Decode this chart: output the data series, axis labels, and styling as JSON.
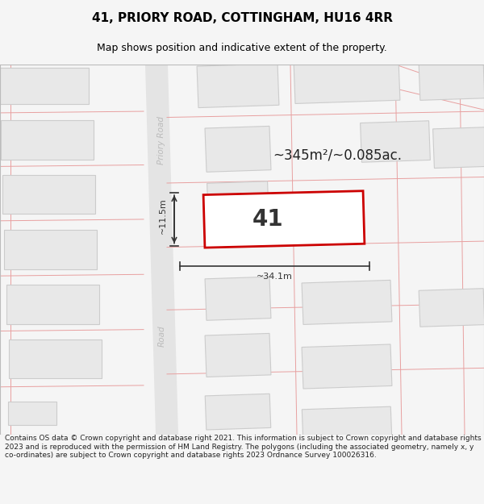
{
  "title": "41, PRIORY ROAD, COTTINGHAM, HU16 4RR",
  "subtitle": "Map shows position and indicative extent of the property.",
  "footer": "Contains OS data © Crown copyright and database right 2021. This information is subject to Crown copyright and database rights 2023 and is reproduced with the permission of HM Land Registry. The polygons (including the associated geometry, namely x, y co-ordinates) are subject to Crown copyright and database rights 2023 Ordnance Survey 100026316.",
  "area_label": "~345m²/~0.085ac.",
  "width_label": "~34.1m",
  "height_label": "~11.5m",
  "property_number": "41",
  "bg_color": "#f5f5f5",
  "map_bg": "#ffffff",
  "building_fill": "#e8e8e8",
  "building_edge": "#cccccc",
  "property_fill": "#ffffff",
  "property_edge": "#cc0000",
  "cadastral_color": "#e8a0a0",
  "road_fill": "#e0e0e0",
  "road_text_color": "#bbbbbb",
  "title_fontsize": 11,
  "subtitle_fontsize": 9,
  "footer_fontsize": 6.5,
  "left_buildings": [
    [
      55,
      462,
      110,
      48,
      0
    ],
    [
      58,
      390,
      115,
      52,
      0
    ],
    [
      60,
      318,
      115,
      52,
      0
    ],
    [
      62,
      245,
      115,
      52,
      0
    ],
    [
      65,
      172,
      115,
      52,
      0
    ],
    [
      68,
      100,
      115,
      52,
      0
    ],
    [
      40,
      28,
      60,
      30,
      0
    ]
  ],
  "right_upper_buildings": [
    [
      295,
      462,
      100,
      55,
      2
    ],
    [
      295,
      378,
      80,
      58,
      2
    ],
    [
      295,
      308,
      75,
      52,
      2
    ]
  ],
  "right_far_upper_buildings": [
    [
      430,
      468,
      130,
      55,
      2
    ],
    [
      560,
      468,
      80,
      48,
      2
    ],
    [
      490,
      388,
      85,
      52,
      2
    ],
    [
      575,
      380,
      75,
      52,
      2
    ]
  ],
  "right_lower_buildings": [
    [
      295,
      180,
      80,
      55,
      2
    ],
    [
      295,
      105,
      80,
      55,
      2
    ],
    [
      295,
      30,
      80,
      45,
      2
    ],
    [
      430,
      175,
      110,
      55,
      2
    ],
    [
      560,
      168,
      80,
      48,
      2
    ],
    [
      430,
      90,
      110,
      55,
      2
    ],
    [
      430,
      15,
      110,
      40,
      2
    ]
  ]
}
